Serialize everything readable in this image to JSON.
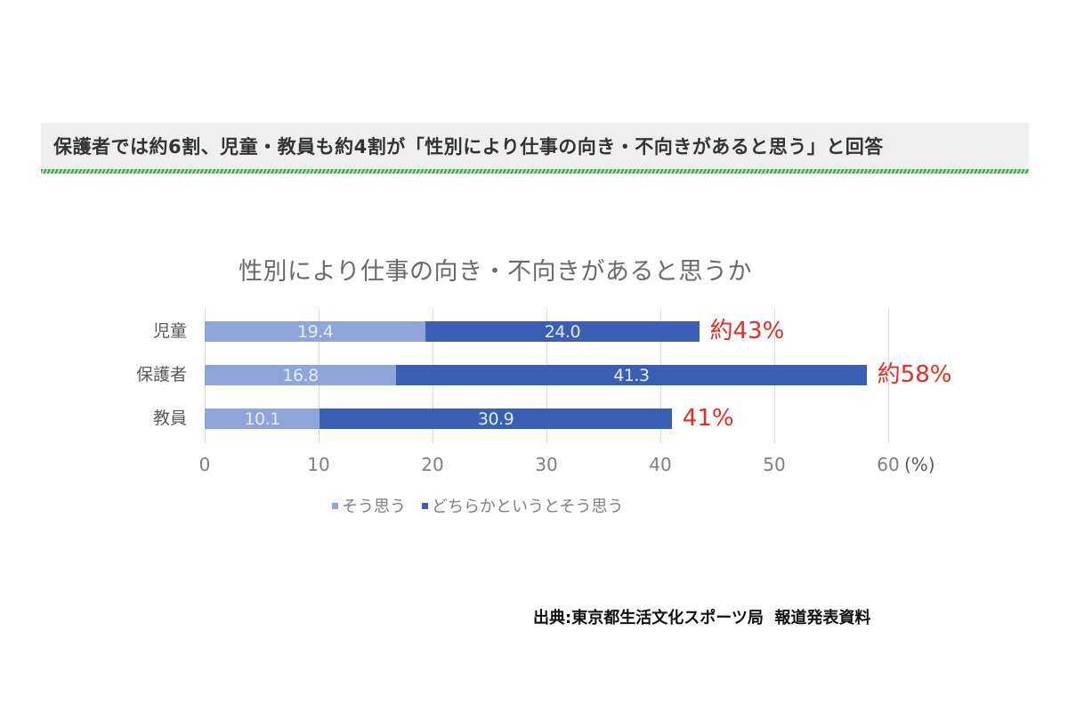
{
  "headline": {
    "text": "保護者では約6割、児童・教員も約4割が「性別により仕事の向き・不向きがあると思う」と回答"
  },
  "colors": {
    "series_1": "#8fa4d8",
    "series_2": "#3960b5",
    "annotation": "#ee2a24",
    "headline_bg": "#efefef",
    "headline_rule": "#3aa845"
  },
  "chart_data": {
    "type": "bar",
    "orientation": "horizontal",
    "stacked": true,
    "title": "性別により仕事の向き・不向きがあると思うか",
    "categories": [
      "児童",
      "保護者",
      "教員"
    ],
    "series": [
      {
        "name": "そう思う",
        "values": [
          19.4,
          16.8,
          10.1
        ],
        "labels": [
          "19.4",
          "16.8",
          "10.1"
        ]
      },
      {
        "name": "どちらかというとそう思う",
        "values": [
          24.0,
          41.3,
          30.9
        ],
        "labels": [
          "24.0",
          "41.3",
          "30.9"
        ]
      }
    ],
    "annotations": [
      "約43%",
      "約58%",
      "41%"
    ],
    "xlabel": "(%)",
    "ylabel": "",
    "xlim": [
      0,
      60
    ],
    "xticks": [
      "0",
      "10",
      "20",
      "30",
      "40",
      "50",
      "60"
    ],
    "grid": "vertical",
    "legend_position": "bottom"
  },
  "source": {
    "text": "出典:東京都生活文化スポーツ局  報道発表資料"
  }
}
